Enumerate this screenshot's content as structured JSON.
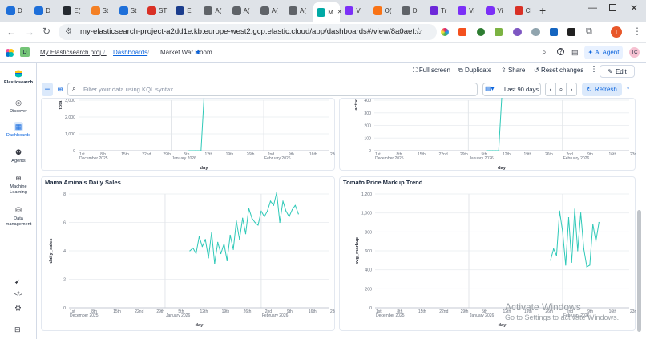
{
  "browser": {
    "tabs": [
      {
        "label": "D",
        "color": "#1e6fd9"
      },
      {
        "label": "D",
        "color": "#1e6fd9"
      },
      {
        "label": "E(",
        "color": "#24292f"
      },
      {
        "label": "St",
        "color": "#f48024"
      },
      {
        "label": "St",
        "color": "#1e6fd9"
      },
      {
        "label": "ST",
        "color": "#d93025"
      },
      {
        "label": "El",
        "color": "#1a3c8c"
      },
      {
        "label": "A(",
        "color": "#5f6368"
      },
      {
        "label": "A(",
        "color": "#5f6368"
      },
      {
        "label": "A(",
        "color": "#5f6368"
      },
      {
        "label": "A(",
        "color": "#5f6368"
      },
      {
        "label": "M",
        "color": "#00a9a5",
        "active": true
      },
      {
        "label": "Vi",
        "color": "#7b2ff7"
      },
      {
        "label": "O(",
        "color": "#f97316"
      },
      {
        "label": "D",
        "color": "#5f6368"
      },
      {
        "label": "Tr",
        "color": "#6d28d9"
      },
      {
        "label": "Vi",
        "color": "#7b2ff7"
      },
      {
        "label": "Vi",
        "color": "#7b2ff7"
      },
      {
        "label": "Cl",
        "color": "#d93025"
      }
    ],
    "url": "my-elasticsearch-project-a2dd1e.kb.europe-west2.gcp.elastic.cloud/app/dashboards#/view/8a0aef...",
    "profile_initial": "T"
  },
  "kibana": {
    "space_badge": "D",
    "project": "My Elasticsearch proj...",
    "crumb_dashboards": "Dashboards",
    "crumb_current": "Market War Room",
    "ai_agent": "AI Agent",
    "user_initials": "TC",
    "nav": [
      {
        "label": "Elasticsearch",
        "icon": "elastic-logo-icon"
      },
      {
        "label": "Discover",
        "icon": "discover-icon"
      },
      {
        "label": "Dashboards",
        "icon": "dashboards-icon",
        "active": true
      },
      {
        "label": "Agents",
        "icon": "agents-icon"
      },
      {
        "label": "Machine Learning",
        "icon": "ml-icon"
      },
      {
        "label": "Data management",
        "icon": "data-icon"
      }
    ],
    "actions": {
      "fullscreen": "Full screen",
      "duplicate": "Duplicate",
      "share": "Share",
      "reset": "Reset changes",
      "edit": "Edit"
    },
    "query": {
      "placeholder": "Filter your data using KQL syntax",
      "date_range": "Last 90 days",
      "refresh": "Refresh"
    }
  },
  "chart_data": [
    {
      "type": "line",
      "title": "",
      "ylabel": "tota",
      "xlabel": "day",
      "yticks": [
        0,
        1000,
        2000,
        3000
      ],
      "ytick_labels": [
        "0",
        "1,000",
        "2,000",
        "3,000"
      ],
      "ylim": [
        0,
        3000
      ],
      "xticks": [
        "1st",
        "8th",
        "15th",
        "22nd",
        "29th",
        "5th",
        "12th",
        "19th",
        "26th",
        "2nd",
        "9th",
        "16th",
        "23rd"
      ],
      "month_labels": [
        "December 2025",
        "January 2026",
        "February 2026"
      ],
      "x": [
        "2026-01-07",
        "2026-01-08",
        "2026-01-09",
        "2026-01-10",
        "2026-01-11",
        "2026-01-12"
      ],
      "values": [
        0,
        0,
        0,
        0,
        0,
        3200
      ]
    },
    {
      "type": "line",
      "title": "",
      "ylabel": "activ",
      "xlabel": "day",
      "yticks": [
        0,
        100,
        200,
        300,
        400
      ],
      "ytick_labels": [
        "0",
        "100",
        "200",
        "300",
        "400"
      ],
      "ylim": [
        0,
        400
      ],
      "xticks": [
        "1st",
        "8th",
        "15th",
        "22nd",
        "29th",
        "5th",
        "12th",
        "19th",
        "26th",
        "2nd",
        "9th",
        "16th",
        "23rd"
      ],
      "month_labels": [
        "December 2025",
        "January 2026",
        "February 2026"
      ],
      "x": [
        "2026-01-07",
        "2026-01-08",
        "2026-01-09",
        "2026-01-10",
        "2026-01-11",
        "2026-01-12"
      ],
      "values": [
        0,
        0,
        0,
        0,
        0,
        450
      ]
    },
    {
      "type": "line",
      "title": "Mama Amina's Daily Sales",
      "ylabel": "daily_sales",
      "xlabel": "day",
      "yticks": [
        0,
        2,
        4,
        6,
        8
      ],
      "ytick_labels": [
        "0",
        "2",
        "4",
        "6",
        "8"
      ],
      "ylim": [
        0,
        8
      ],
      "xticks": [
        "1st",
        "8th",
        "15th",
        "22nd",
        "29th",
        "5th",
        "12th",
        "19th",
        "26th",
        "2nd",
        "9th",
        "16th",
        "23rd"
      ],
      "month_labels": [
        "December 2025",
        "January 2026",
        "February 2026"
      ],
      "x": [
        "2026-01-09",
        "2026-01-10",
        "2026-01-11",
        "2026-01-12",
        "2026-01-13",
        "2026-01-14",
        "2026-01-15",
        "2026-01-16",
        "2026-01-17",
        "2026-01-18",
        "2026-01-19",
        "2026-01-20",
        "2026-01-21",
        "2026-01-22",
        "2026-01-23",
        "2026-01-24",
        "2026-01-25",
        "2026-01-26",
        "2026-01-27",
        "2026-01-28",
        "2026-01-29",
        "2026-01-30",
        "2026-01-31",
        "2026-02-01",
        "2026-02-02",
        "2026-02-03",
        "2026-02-04",
        "2026-02-05",
        "2026-02-06",
        "2026-02-07",
        "2026-02-08",
        "2026-02-09",
        "2026-02-10",
        "2026-02-11",
        "2026-02-12",
        "2026-02-13"
      ],
      "values": [
        4.0,
        4.2,
        3.8,
        5.0,
        4.3,
        4.8,
        3.5,
        5.3,
        3.1,
        4.6,
        3.8,
        4.5,
        3.3,
        5.1,
        4.1,
        6.1,
        4.8,
        6.3,
        5.2,
        7.0,
        6.3,
        6.0,
        5.8,
        6.8,
        6.4,
        6.8,
        7.5,
        7.2,
        8.1,
        6.0,
        7.5,
        6.8,
        6.4,
        6.9,
        7.2,
        6.6
      ]
    },
    {
      "type": "line",
      "title": "Tomato Price Markup Trend",
      "ylabel": "avg_markup",
      "xlabel": "day",
      "yticks": [
        0,
        200,
        400,
        600,
        800,
        1000,
        1200
      ],
      "ytick_labels": [
        "0",
        "200",
        "400",
        "600",
        "800",
        "1,000",
        "1,200"
      ],
      "ylim": [
        0,
        1200
      ],
      "xticks": [
        "1st",
        "8th",
        "15th",
        "22nd",
        "29th",
        "5th",
        "12th",
        "19th",
        "26th",
        "2nd",
        "9th",
        "16th",
        "23rd"
      ],
      "month_labels": [
        "December 2025",
        "January 2026",
        "February 2026"
      ],
      "x": [
        "2026-01-28",
        "2026-01-29",
        "2026-01-30",
        "2026-01-31",
        "2026-02-01",
        "2026-02-02",
        "2026-02-03",
        "2026-02-04",
        "2026-02-05",
        "2026-02-06",
        "2026-02-07",
        "2026-02-08",
        "2026-02-09",
        "2026-02-10",
        "2026-02-11",
        "2026-02-12",
        "2026-02-13"
      ],
      "values": [
        500,
        620,
        550,
        1020,
        800,
        450,
        950,
        480,
        1040,
        600,
        1000,
        620,
        430,
        450,
        880,
        700,
        900
      ]
    }
  ],
  "watermark": {
    "line1": "Activate Windows",
    "line2": "Go to Settings to activate Windows."
  }
}
